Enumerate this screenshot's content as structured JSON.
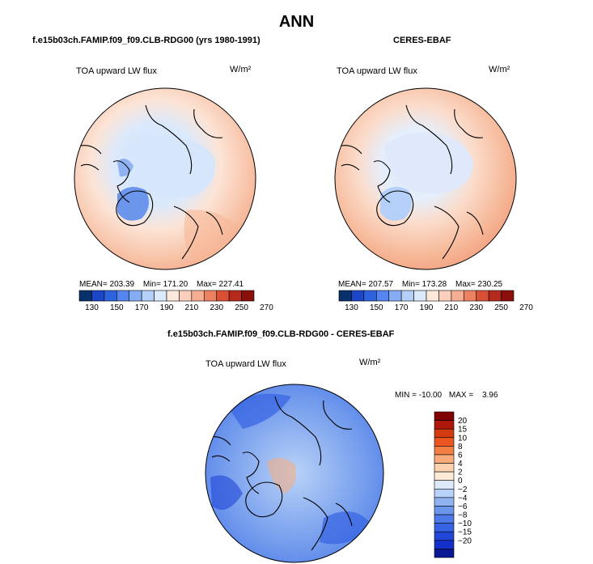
{
  "page": {
    "title": "ANN",
    "panel_left_subtitle": "f.e15b03ch.FAMIP.f09_f09.CLB-RDG00 (yrs 1980-1991)",
    "panel_right_subtitle": "CERES-EBAF",
    "panel_diff_subtitle": "f.e15b03ch.FAMIP.f09_f09.CLB-RDG00 - CERES-EBAF"
  },
  "colors": {
    "abs_levels": [
      "#08306b",
      "#1b46c8",
      "#2e63e0",
      "#5585ee",
      "#86acf4",
      "#b4d0f9",
      "#dbe9fc",
      "#fce9dc",
      "#fad0bc",
      "#f5ae92",
      "#ec8262",
      "#da5035",
      "#b52a1a",
      "#8a0f0a"
    ],
    "diff_levels": [
      "#800000",
      "#b0170b",
      "#d33b10",
      "#ea5520",
      "#f47f45",
      "#f9ab7b",
      "#fdd0ae",
      "#fdebd8",
      "#dde9fb",
      "#b9d2f8",
      "#90b2f1",
      "#6c96ec",
      "#4d7ae8",
      "#3563e3",
      "#2246d8",
      "#1530c8",
      "#0a1896"
    ],
    "map_low": "#cfe3fb",
    "map_high": "#f5b596",
    "coast": "#000000"
  },
  "chart_data": [
    {
      "type": "polar-contour-map",
      "title": "ANN",
      "subtitle": "f.e15b03ch.FAMIP.f09_f09.CLB-RDG00 (yrs 1980-1991)",
      "variable": "TOA upward LW flux",
      "units": "W/m²",
      "stats": {
        "mean_label": "MEAN=",
        "mean": "203.39",
        "min_label": "Min=",
        "min": "171.20",
        "max_label": "Max=",
        "max": "227.41"
      },
      "colorbar": {
        "orientation": "horizontal",
        "tick_labels": [
          "130",
          "150",
          "170",
          "190",
          "210",
          "230",
          "250",
          "270"
        ],
        "levels": [
          120,
          130,
          140,
          150,
          160,
          170,
          180,
          190,
          200,
          210,
          220,
          230,
          240,
          250,
          260,
          270,
          280
        ]
      }
    },
    {
      "type": "polar-contour-map",
      "title": "ANN",
      "subtitle": "CERES-EBAF",
      "variable": "TOA upward LW flux",
      "units": "W/m²",
      "stats": {
        "mean_label": "MEAN=",
        "mean": "207.57",
        "min_label": "Min=",
        "min": "173.28",
        "max_label": "Max=",
        "max": "230.25"
      },
      "colorbar": {
        "orientation": "horizontal",
        "tick_labels": [
          "130",
          "150",
          "170",
          "190",
          "210",
          "230",
          "250",
          "270"
        ],
        "levels": [
          120,
          130,
          140,
          150,
          160,
          170,
          180,
          190,
          200,
          210,
          220,
          230,
          240,
          250,
          260,
          270,
          280
        ]
      }
    },
    {
      "type": "polar-contour-map",
      "title": "ANN",
      "subtitle": "f.e15b03ch.FAMIP.f09_f09.CLB-RDG00 - CERES-EBAF",
      "variable": "TOA upward LW flux",
      "units": "W/m²",
      "stats": {
        "min_label": "MIN =",
        "min": "-10.00",
        "max_label": "MAX =",
        "max": "3.96"
      },
      "colorbar": {
        "orientation": "vertical",
        "tick_labels": [
          "20",
          "15",
          "10",
          "8",
          "6",
          "4",
          "2",
          "0",
          "−2",
          "−4",
          "−6",
          "−8",
          "−10",
          "−15",
          "−20"
        ],
        "levels": [
          20,
          15,
          10,
          8,
          6,
          4,
          2,
          0,
          -2,
          -4,
          -6,
          -8,
          -10,
          -15,
          -20
        ]
      }
    }
  ]
}
